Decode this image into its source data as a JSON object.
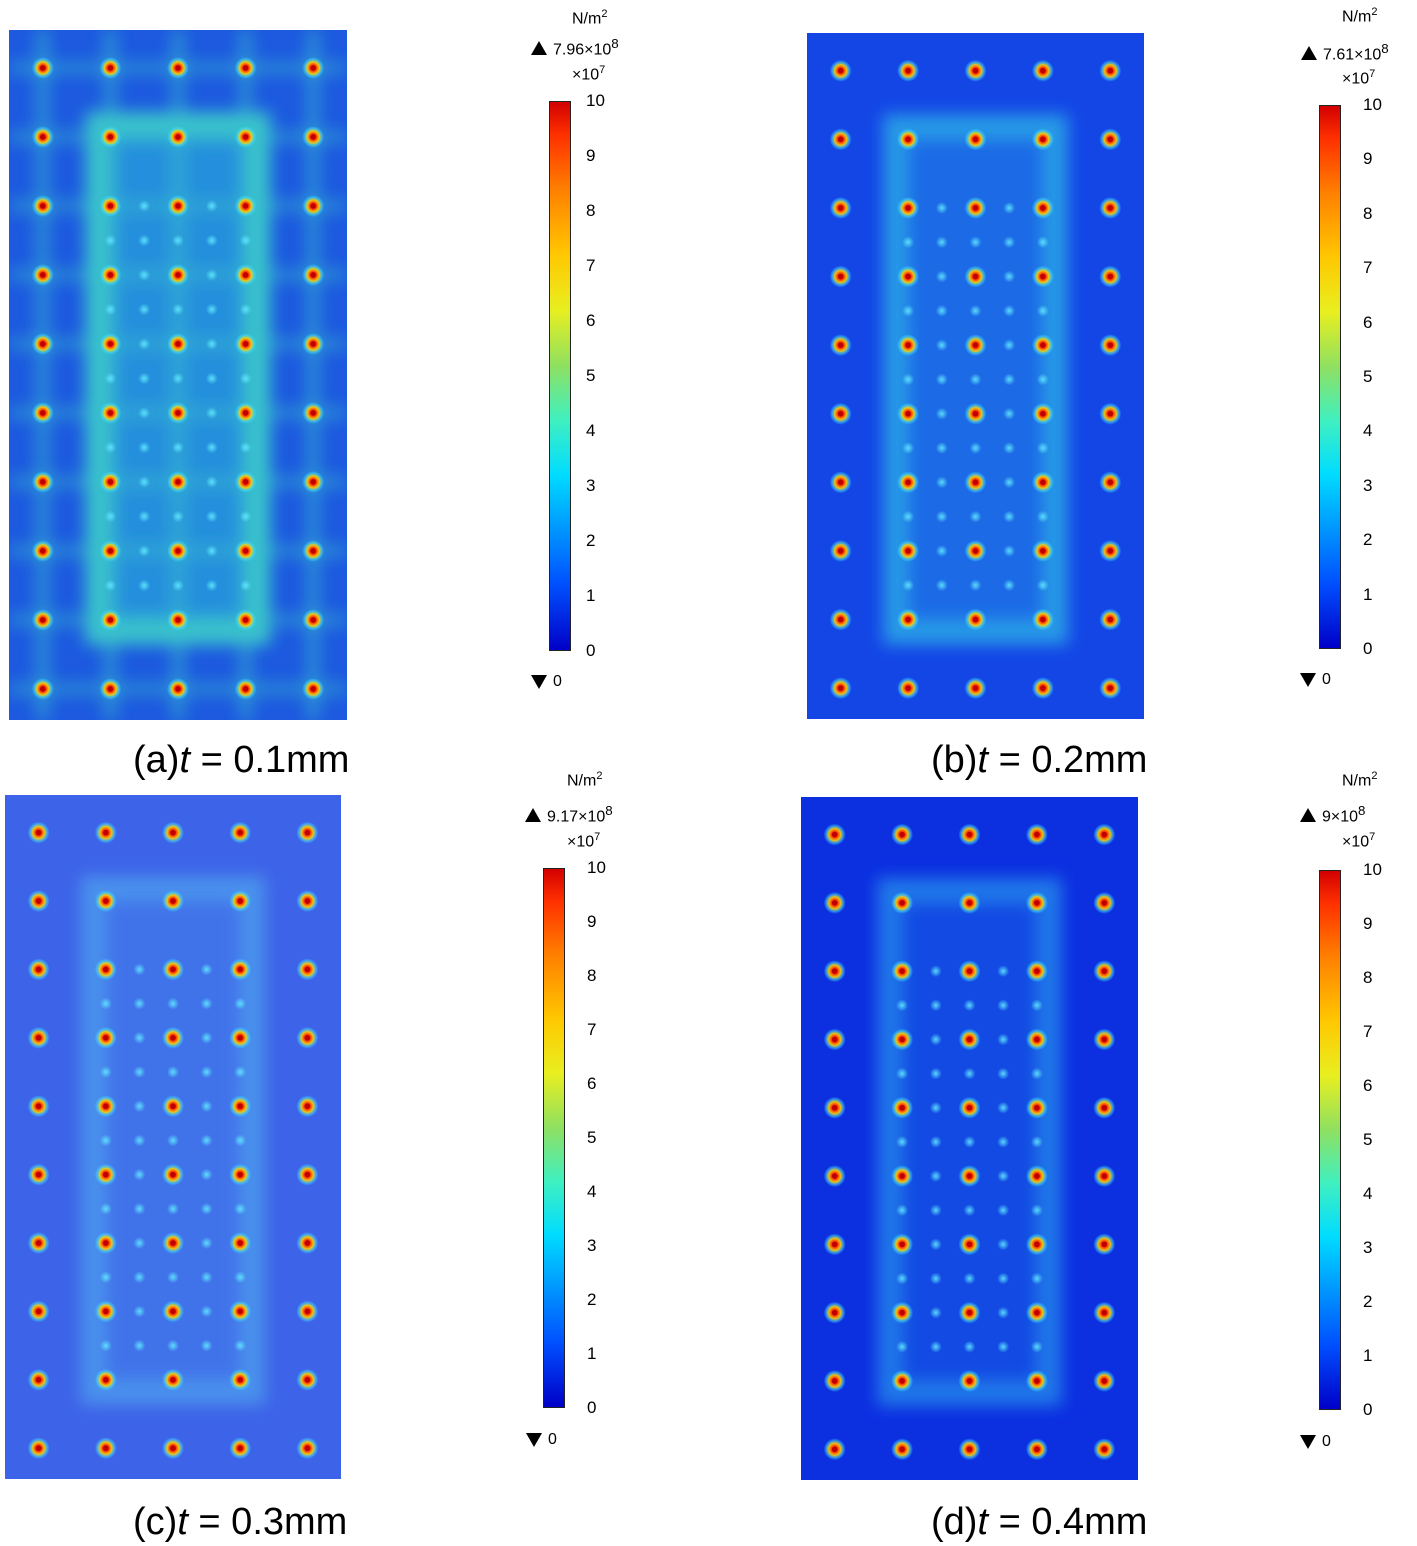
{
  "panels": [
    {
      "id": "a",
      "caption_prefix": "(a)",
      "caption_var": "t",
      "caption_rest": " = 0.1mm",
      "unit": "N/m",
      "unit_exp": "2",
      "max_mantissa": "7.96×10",
      "max_exp": "8",
      "scale_mantissa": "×10",
      "scale_exp": "7",
      "min_label": "0",
      "stress_level": "high"
    },
    {
      "id": "b",
      "caption_prefix": "(b)",
      "caption_var": "t",
      "caption_rest": " = 0.2mm",
      "unit": "N/m",
      "unit_exp": "2",
      "max_mantissa": "7.61×10",
      "max_exp": "8",
      "scale_mantissa": "×10",
      "scale_exp": "7",
      "min_label": "0",
      "stress_level": "medium"
    },
    {
      "id": "c",
      "caption_prefix": "(c)",
      "caption_var": "t",
      "caption_rest": " = 0.3mm",
      "unit": "N/m",
      "unit_exp": "2",
      "max_mantissa": "9.17×10",
      "max_exp": "8",
      "scale_mantissa": "×10",
      "scale_exp": "7",
      "min_label": "0",
      "stress_level": "low"
    },
    {
      "id": "d",
      "caption_prefix": "(d)",
      "caption_var": "t",
      "caption_rest": " = 0.4mm",
      "unit": "N/m",
      "unit_exp": "2",
      "max_mantissa": "9×10",
      "max_exp": "8",
      "scale_mantissa": "×10",
      "scale_exp": "7",
      "min_label": "0",
      "stress_level": "lowest"
    }
  ],
  "colorbar_ticks": [
    "10",
    "9",
    "8",
    "7",
    "6",
    "5",
    "4",
    "3",
    "2",
    "1",
    "0"
  ],
  "colors": {
    "low": "#0000c8",
    "mid": "#00dcff",
    "high": "#d20000"
  }
}
